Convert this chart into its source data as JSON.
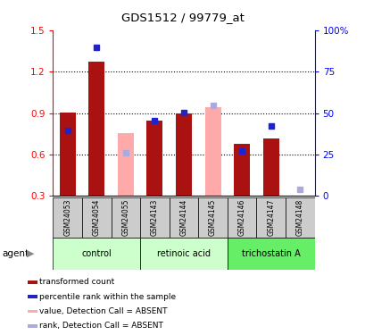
{
  "title": "GDS1512 / 99779_at",
  "samples": [
    "GSM24053",
    "GSM24054",
    "GSM24055",
    "GSM24143",
    "GSM24144",
    "GSM24145",
    "GSM24146",
    "GSM24147",
    "GSM24148"
  ],
  "groups": [
    {
      "label": "control",
      "start": 0,
      "end": 2,
      "color": "#ccffcc"
    },
    {
      "label": "retinoic acid",
      "start": 3,
      "end": 5,
      "color": "#ccffcc"
    },
    {
      "label": "trichostatin A",
      "start": 6,
      "end": 8,
      "color": "#66ee66"
    }
  ],
  "red_values": [
    0.905,
    1.27,
    null,
    0.845,
    0.895,
    null,
    0.675,
    0.715,
    0.315
  ],
  "blue_values": [
    0.775,
    1.375,
    0.615,
    0.845,
    0.905,
    0.955,
    0.625,
    0.805,
    0.35
  ],
  "pink_values": [
    null,
    null,
    0.755,
    null,
    null,
    0.945,
    null,
    null,
    null
  ],
  "absent_red": [
    false,
    false,
    true,
    false,
    false,
    true,
    false,
    false,
    true
  ],
  "absent_blue": [
    false,
    false,
    true,
    false,
    false,
    true,
    false,
    false,
    true
  ],
  "ylim_left": [
    0.3,
    1.5
  ],
  "ylim_right": [
    0,
    100
  ],
  "bar_width": 0.55,
  "red_color": "#aa1111",
  "pink_color": "#ffaaaa",
  "blue_color": "#2222cc",
  "blue_absent_color": "#aaaadd",
  "legend_items": [
    {
      "label": "transformed count",
      "color": "#aa1111"
    },
    {
      "label": "percentile rank within the sample",
      "color": "#2222cc"
    },
    {
      "label": "value, Detection Call = ABSENT",
      "color": "#ffaaaa"
    },
    {
      "label": "rank, Detection Call = ABSENT",
      "color": "#aaaadd"
    }
  ]
}
